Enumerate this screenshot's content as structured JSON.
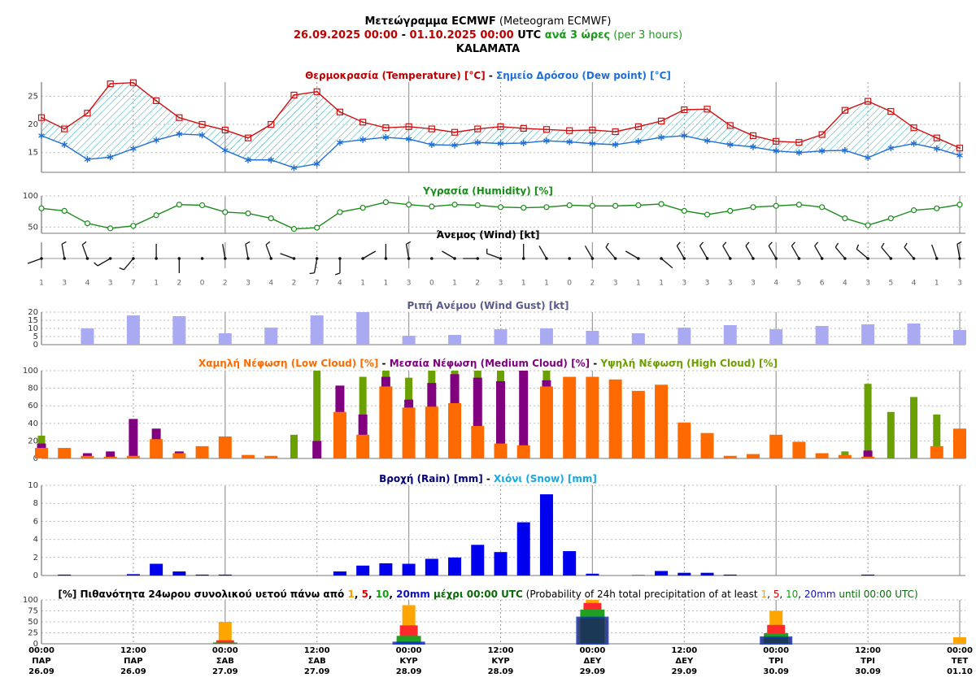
{
  "header": {
    "lines": [
      [
        {
          "text": "Μετεώγραμμα ECMWF",
          "color": "#000000",
          "bold": true
        },
        {
          "text": " (Meteogram ECMWF)",
          "color": "#000000",
          "bold": false
        }
      ],
      [
        {
          "text": "26.09.2025 00:00",
          "color": "#c00000",
          "bold": true
        },
        {
          "text": " - ",
          "color": "#000000",
          "bold": true
        },
        {
          "text": "01.10.2025 00:00",
          "color": "#c00000",
          "bold": true
        },
        {
          "text": " UTC",
          "color": "#000000",
          "bold": true
        },
        {
          "text": " ανά 3 ώρες",
          "color": "#1a9a1a",
          "bold": true
        },
        {
          "text": " (per 3 hours)",
          "color": "#1a9a1a",
          "bold": false
        }
      ],
      [
        {
          "text": "KALAMATA",
          "color": "#000000",
          "bold": true
        }
      ]
    ]
  },
  "x_labels": [
    {
      "time": "00:00",
      "day": "ΠΑΡ",
      "date": "26.09"
    },
    {
      "time": "12:00",
      "day": "ΠΑΡ",
      "date": "26.09"
    },
    {
      "time": "00:00",
      "day": "ΣΑΒ",
      "date": "27.09"
    },
    {
      "time": "12:00",
      "day": "ΣΑΒ",
      "date": "27.09"
    },
    {
      "time": "00:00",
      "day": "ΚΥΡ",
      "date": "28.09"
    },
    {
      "time": "12:00",
      "day": "ΚΥΡ",
      "date": "28.09"
    },
    {
      "time": "00:00",
      "day": "ΔΕΥ",
      "date": "29.09"
    },
    {
      "time": "12:00",
      "day": "ΔΕΥ",
      "date": "29.09"
    },
    {
      "time": "00:00",
      "day": "ΤΡΙ",
      "date": "30.09"
    },
    {
      "time": "12:00",
      "day": "ΤΡΙ",
      "date": "30.09"
    },
    {
      "time": "00:00",
      "day": "ΤΕΤ",
      "date": "01.10"
    }
  ],
  "chart_data": [
    {
      "type": "line",
      "title": [
        {
          "text": "Θερμοκρασία (Temperature) [°C]",
          "color": "#c00000",
          "bold": true
        },
        {
          "text": " - ",
          "color": "#000000",
          "bold": true
        },
        {
          "text": "Σημείο Δρόσου (Dew point) [°C]",
          "color": "#1f6fd6",
          "bold": true
        }
      ],
      "ylim": [
        11.5,
        27.5
      ],
      "yticks": [
        15,
        20,
        25
      ],
      "grid": true,
      "fill_between": true,
      "series": [
        {
          "name": "Temperature",
          "color": "#d01010",
          "marker": "square",
          "values": [
            21.2,
            19.2,
            22,
            27.2,
            27.4,
            24.2,
            21.2,
            20,
            19,
            17.6,
            20,
            25.2,
            25.8,
            22.2,
            20.4,
            19.4,
            19.6,
            19.2,
            18.6,
            19.2,
            19.6,
            19.3,
            19.1,
            18.9,
            19,
            18.7,
            19.6,
            20.6,
            22.6,
            22.7,
            19.8,
            18,
            17,
            16.8,
            18.2,
            22.5,
            24.1,
            22.3,
            19.4,
            17.6,
            15.8
          ]
        },
        {
          "name": "Dew point",
          "color": "#1f6fd6",
          "marker": "star",
          "values": [
            18,
            16.4,
            13.8,
            14.2,
            15.7,
            17.2,
            18.3,
            18.1,
            15.4,
            13.7,
            13.7,
            12.3,
            13,
            16.8,
            17.3,
            17.7,
            17.4,
            16.4,
            16.3,
            16.8,
            16.6,
            16.7,
            17.1,
            16.9,
            16.6,
            16.4,
            17,
            17.7,
            18,
            17.1,
            16.4,
            16,
            15.3,
            15,
            15.3,
            15.4,
            14.1,
            15.8,
            16.6,
            15.7,
            14.5
          ]
        }
      ]
    },
    {
      "type": "line",
      "title": [
        {
          "text": "Υγρασία (Humidity) [%]",
          "color": "#1a8c1a",
          "bold": true
        }
      ],
      "ylim": [
        40,
        100
      ],
      "yticks": [
        50,
        100
      ],
      "grid": true,
      "series": [
        {
          "name": "Humidity",
          "color": "#1a8c1a",
          "marker": "circle",
          "values": [
            80,
            76,
            56,
            48,
            52,
            69,
            86,
            85,
            74,
            72,
            64,
            47,
            49,
            74,
            81,
            90,
            86,
            83,
            86,
            85,
            82,
            81,
            82,
            85,
            84,
            84,
            85,
            87,
            76,
            70,
            76,
            82,
            84,
            86,
            82,
            64,
            53,
            64,
            77,
            80,
            86
          ]
        }
      ]
    },
    {
      "type": "wind",
      "title": [
        {
          "text": "Άνεμος (Wind) [kt]",
          "color": "#000000",
          "bold": true
        }
      ],
      "speed": [
        1,
        3,
        4,
        3,
        7,
        1,
        2,
        0,
        2,
        3,
        4,
        2,
        7,
        4,
        1,
        1,
        3,
        0,
        1,
        2,
        3,
        1,
        1,
        0,
        2,
        3,
        1,
        1,
        3,
        3,
        3,
        3,
        4,
        5,
        6,
        4,
        3,
        5,
        4,
        1,
        3
      ],
      "direction": [
        250,
        350,
        340,
        240,
        220,
        0,
        180,
        0,
        350,
        350,
        340,
        290,
        190,
        180,
        60,
        0,
        350,
        0,
        300,
        270,
        290,
        0,
        330,
        0,
        330,
        320,
        300,
        130,
        330,
        330,
        330,
        330,
        330,
        330,
        330,
        320,
        310,
        320,
        320,
        340,
        350
      ]
    },
    {
      "type": "bar",
      "title": [
        {
          "text": "Ριπή Ανέμου (Wind Gust) [kt]",
          "color": "#5a5a8a",
          "bold": true
        }
      ],
      "ylim": [
        0,
        20
      ],
      "yticks": [
        0,
        5,
        10,
        15,
        20
      ],
      "grid": true,
      "series": [
        {
          "name": "Wind Gust",
          "color": "#aaaaf2",
          "values": [
            null,
            null,
            10,
            null,
            18,
            null,
            17.5,
            null,
            7,
            null,
            10.5,
            null,
            18,
            null,
            20,
            null,
            5.5,
            null,
            6,
            null,
            9.5,
            null,
            10,
            null,
            8.5,
            null,
            7,
            null,
            10.5,
            null,
            12,
            null,
            9.5,
            null,
            11.5,
            null,
            12.5,
            null,
            13,
            null,
            9
          ]
        }
      ]
    },
    {
      "type": "bar",
      "title": [
        {
          "text": "Χαμηλή Νέφωση (Low Cloud) [%]",
          "color": "#ff6a00",
          "bold": true
        },
        {
          "text": " - ",
          "color": "#000000",
          "bold": true
        },
        {
          "text": "Μεσαία Νέφωση (Medium Cloud) [%]",
          "color": "#800080",
          "bold": true
        },
        {
          "text": " - ",
          "color": "#000000",
          "bold": true
        },
        {
          "text": "Υψηλή Νέφωση (High Cloud) [%]",
          "color": "#6aa000",
          "bold": true
        }
      ],
      "ylim": [
        0,
        100
      ],
      "yticks": [
        0,
        20,
        40,
        60,
        80,
        100
      ],
      "grid": true,
      "series": [
        {
          "name": "High Cloud",
          "color": "#6aa000",
          "values": [
            26,
            0,
            0,
            0,
            0,
            0,
            0,
            0,
            0,
            0,
            0,
            27,
            100,
            0,
            93,
            100,
            92,
            100,
            100,
            100,
            100,
            100,
            100,
            0,
            0,
            0,
            0,
            0,
            0,
            0,
            0,
            0,
            0,
            0,
            0,
            8,
            85,
            53,
            70,
            50,
            0
          ]
        },
        {
          "name": "Medium Cloud",
          "color": "#800080",
          "values": [
            17,
            0,
            6,
            8,
            45,
            34,
            8,
            0,
            0,
            0,
            0,
            0,
            20,
            83,
            50,
            93,
            67,
            86,
            96,
            92,
            88,
            100,
            89,
            0,
            0,
            0,
            0,
            0,
            0,
            0,
            0,
            0,
            0,
            0,
            0,
            0,
            9,
            0,
            0,
            0,
            0
          ]
        },
        {
          "name": "Low Cloud",
          "color": "#ff6a00",
          "values": [
            12,
            12,
            3,
            2,
            3,
            22,
            6,
            14,
            25,
            4,
            3,
            0,
            0,
            53,
            27,
            82,
            58,
            59,
            63,
            37,
            17,
            15,
            82,
            93,
            93,
            90,
            77,
            84,
            41,
            29,
            3,
            5,
            27,
            19,
            6,
            4,
            2,
            0,
            0,
            14,
            34
          ]
        }
      ]
    },
    {
      "type": "bar",
      "title": [
        {
          "text": "Βροχή (Rain) [mm]",
          "color": "#00007a",
          "bold": true
        },
        {
          "text": " - ",
          "color": "#000000",
          "bold": true
        },
        {
          "text": "Χιόνι (Snow) [mm]",
          "color": "#18a8e0",
          "bold": true
        }
      ],
      "ylim": [
        0,
        10
      ],
      "yticks": [
        0,
        2,
        4,
        6,
        8,
        10
      ],
      "grid": true,
      "series": [
        {
          "name": "Rain",
          "color": "#0000ee",
          "values": [
            0,
            0.1,
            0,
            0,
            0.15,
            1.3,
            0.45,
            0.1,
            0.1,
            0,
            0,
            0,
            0,
            0.45,
            1.1,
            1.35,
            1.3,
            1.85,
            2,
            3.4,
            2.6,
            5.9,
            9,
            2.7,
            0.2,
            0,
            0.05,
            0.5,
            0.3,
            0.3,
            0.1,
            0,
            0,
            0,
            0,
            0,
            0.1,
            0,
            0,
            0,
            0
          ]
        }
      ]
    },
    {
      "type": "prob",
      "title": [
        {
          "text": "[%] Πιθανότητα 24ωρου συνολικού υετού πάνω από ",
          "color": "#000000",
          "bold": true
        },
        {
          "text": "1",
          "color": "#ff9900",
          "bold": true
        },
        {
          "text": ", ",
          "color": "#000000",
          "bold": true
        },
        {
          "text": "5",
          "color": "#e00000",
          "bold": true
        },
        {
          "text": ", ",
          "color": "#000000",
          "bold": true
        },
        {
          "text": "10",
          "color": "#10a010",
          "bold": true
        },
        {
          "text": ", ",
          "color": "#000000",
          "bold": true
        },
        {
          "text": "20mm",
          "color": "#1010c0",
          "bold": true
        },
        {
          "text": " μέχρι 00:00 UTC",
          "color": "#0a6a0a",
          "bold": true
        },
        {
          "text": " (Probability of 24h total precipitation of at least ",
          "color": "#000000",
          "bold": false
        },
        {
          "text": "1",
          "color": "#ff9900",
          "bold": false
        },
        {
          "text": ", ",
          "color": "#000000",
          "bold": false
        },
        {
          "text": "5",
          "color": "#e00000",
          "bold": false
        },
        {
          "text": ", ",
          "color": "#000000",
          "bold": false
        },
        {
          "text": "10",
          "color": "#10a010",
          "bold": false
        },
        {
          "text": ", ",
          "color": "#000000",
          "bold": false
        },
        {
          "text": "20mm",
          "color": "#1010c0",
          "bold": false
        },
        {
          "text": " until 00:00 UTC)",
          "color": "#0a6a0a",
          "bold": false
        }
      ],
      "ylim": [
        0,
        100
      ],
      "yticks": [
        0,
        25,
        50,
        75,
        100
      ],
      "grid": true,
      "series": [
        {
          "name": "1mm",
          "color": "#ffa500",
          "values": [
            50,
            88,
            100,
            75,
            15
          ]
        },
        {
          "name": "5mm",
          "color": "#ff2a2a",
          "values": [
            8,
            42,
            93,
            43,
            0
          ]
        },
        {
          "name": "10mm",
          "color": "#22a022",
          "values": [
            3,
            18,
            78,
            24,
            0
          ]
        },
        {
          "name": "20mm",
          "color": "#1030c0",
          "values": [
            0,
            3,
            60,
            15,
            0
          ]
        }
      ]
    }
  ]
}
